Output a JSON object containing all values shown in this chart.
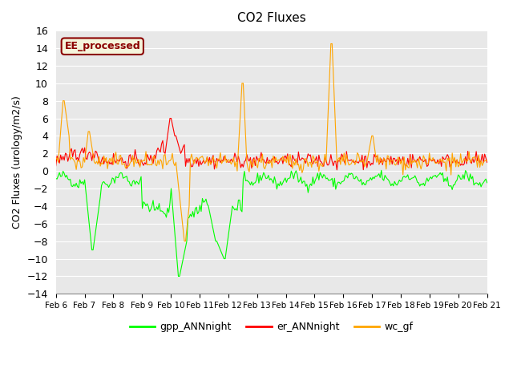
{
  "title": "CO2 Fluxes",
  "ylabel": "CO2 Fluxes (urology/m2/s)",
  "xlabel": "",
  "ylim": [
    -14,
    16
  ],
  "yticks": [
    -14,
    -12,
    -10,
    -8,
    -6,
    -4,
    -2,
    0,
    2,
    4,
    6,
    8,
    10,
    12,
    14,
    16
  ],
  "xtick_labels": [
    "Feb 6",
    "Feb 7",
    "Feb 8",
    "Feb 9",
    "Feb 10",
    "Feb 11",
    "Feb 12",
    "Feb 13",
    "Feb 14",
    "Feb 15",
    "Feb 16",
    "Feb 17",
    "Feb 18",
    "Feb 19",
    "Feb 20",
    "Feb 21"
  ],
  "annotation_text": "EE_processed",
  "annotation_color": "#8B0000",
  "annotation_bg": "#F5F5DC",
  "line_colors": {
    "gpp": "#00FF00",
    "er": "#FF0000",
    "wc": "#FFA500"
  },
  "legend_labels": [
    "gpp_ANNnight",
    "er_ANNnight",
    "wc_gf"
  ],
  "plot_bg": "#E8E8E8",
  "fig_bg": "#FFFFFF",
  "n_points": 360
}
